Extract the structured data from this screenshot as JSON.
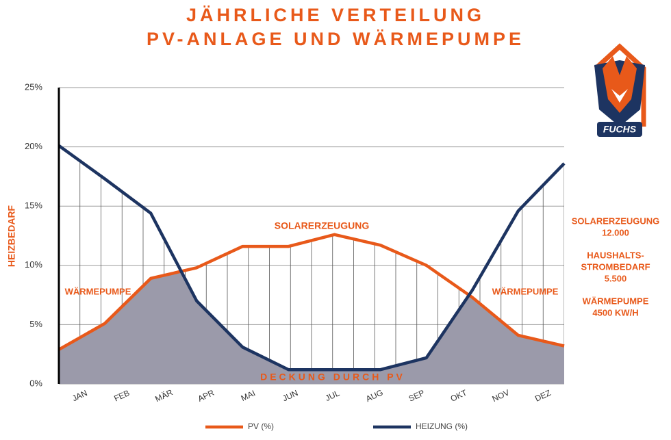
{
  "chart_data": {
    "type": "line",
    "title": "JÄHRLICHE VERTEILUNG",
    "subtitle": "PV-ANLAGE UND WÄRMEPUMPE",
    "ylabel": "HEIZBEDARF",
    "categories": [
      "JAN",
      "FEB",
      "MÄR",
      "APR",
      "MAI",
      "JUN",
      "JUL",
      "AUG",
      "SEP",
      "OKT",
      "NOV",
      "DEZ"
    ],
    "series": [
      {
        "name": "PV (%)",
        "color": "#e8591a",
        "values": [
          2.9,
          5.1,
          8.9,
          9.8,
          11.6,
          11.6,
          12.6,
          11.7,
          10.0,
          7.3,
          4.1,
          3.2
        ]
      },
      {
        "name": "HEIZUNG (%)",
        "color": "#1d3461",
        "values": [
          20.1,
          17.3,
          14.4,
          7.0,
          3.1,
          1.2,
          1.2,
          1.2,
          2.2,
          7.9,
          14.6,
          18.6
        ]
      }
    ],
    "ylim": [
      0,
      25
    ],
    "yticks": [
      {
        "value": 0,
        "label": "0%"
      },
      {
        "value": 5,
        "label": "5%"
      },
      {
        "value": 10,
        "label": "10%"
      },
      {
        "value": 15,
        "label": "15%"
      },
      {
        "value": 20,
        "label": "20%"
      },
      {
        "value": 25,
        "label": "25%"
      }
    ],
    "grid": true,
    "fill_color": "#9b9aaa",
    "annotations": [
      "SOLARERZEUGUNG",
      "WÄRMEPUMPE",
      "WÄRMEPUMPE",
      "DECKUNG DURCH PV"
    ],
    "side_notes": [
      "SOLARERZEUGUNG",
      "12.000",
      "HAUSHALTS-",
      "STROMBEDARF",
      "5.500",
      "WÄRMEPUMPE",
      "4500 KW/H"
    ]
  },
  "logo": {
    "text": "FUCHS"
  }
}
